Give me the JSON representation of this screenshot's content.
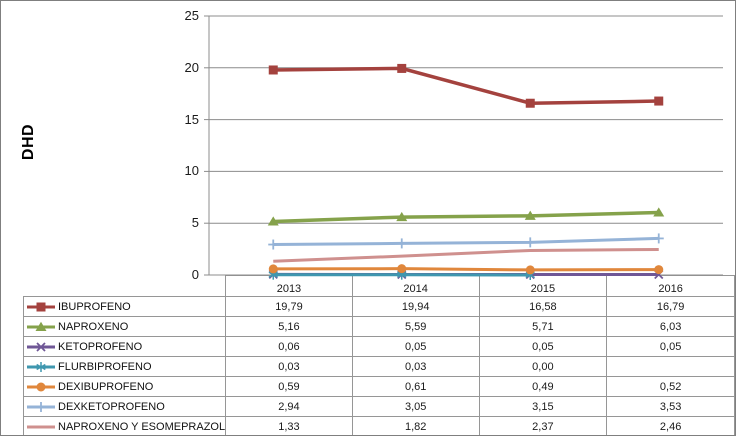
{
  "chart_data": {
    "type": "line",
    "title": "",
    "xlabel": "",
    "ylabel": "DHD",
    "ylim": [
      0,
      25
    ],
    "yticks": [
      0,
      5,
      10,
      15,
      20,
      25
    ],
    "ytick_labels": [
      "0",
      "5",
      "10",
      "15",
      "20",
      "25"
    ],
    "categories": [
      "2013",
      "2014",
      "2015",
      "2016"
    ],
    "grid": true,
    "legend_position": "data-table-left-column",
    "gridline_color": "#8C8C8C",
    "table_border_color": "#969696",
    "figure_border_color": "#7F7F7F",
    "series": [
      {
        "name": "IBUPROFENO",
        "color": "#A4423E",
        "marker": "square",
        "values": [
          19.79,
          19.94,
          16.58,
          16.79
        ],
        "display": [
          "19,79",
          "19,94",
          "16,58",
          "16,79"
        ]
      },
      {
        "name": "NAPROXENO",
        "color": "#85A24B",
        "marker": "triangle",
        "values": [
          5.16,
          5.59,
          5.71,
          6.03
        ],
        "display": [
          "5,16",
          "5,59",
          "5,71",
          "6,03"
        ]
      },
      {
        "name": "KETOPROFENO",
        "color": "#6F5796",
        "marker": "x",
        "values": [
          0.06,
          0.05,
          0.05,
          0.05
        ],
        "display": [
          "0,06",
          "0,05",
          "0,05",
          "0,05"
        ]
      },
      {
        "name": "FLURBIPROFENO",
        "color": "#3F97AF",
        "marker": "asterisk",
        "values": [
          0.03,
          0.03,
          0.0,
          null
        ],
        "display": [
          "0,03",
          "0,03",
          "0,00",
          ""
        ]
      },
      {
        "name": "DEXIBUPROFENO",
        "color": "#E0873C",
        "marker": "circle",
        "values": [
          0.59,
          0.61,
          0.49,
          0.52
        ],
        "display": [
          "0,59",
          "0,61",
          "0,49",
          "0,52"
        ]
      },
      {
        "name": "DEXKETOPROFENO",
        "color": "#95B3D7",
        "marker": "plus",
        "values": [
          2.94,
          3.05,
          3.15,
          3.53
        ],
        "display": [
          "2,94",
          "3,05",
          "3,15",
          "3,53"
        ]
      },
      {
        "name": "NAPROXENO Y ESOMEPRAZOL",
        "color": "#CF908E",
        "marker": "none",
        "values": [
          1.33,
          1.82,
          2.37,
          2.46
        ],
        "display": [
          "1,33",
          "1,82",
          "2,37",
          "2,46"
        ]
      }
    ]
  }
}
